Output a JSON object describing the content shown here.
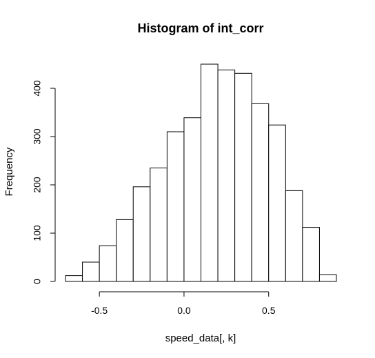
{
  "chart_data": {
    "type": "bar",
    "title": "Histogram of int_corr",
    "xlabel": "speed_data[, k]",
    "ylabel": "Frequency",
    "bins": [
      {
        "start": -0.7,
        "end": -0.6,
        "count": 12
      },
      {
        "start": -0.6,
        "end": -0.5,
        "count": 40
      },
      {
        "start": -0.5,
        "end": -0.4,
        "count": 74
      },
      {
        "start": -0.4,
        "end": -0.3,
        "count": 128
      },
      {
        "start": -0.3,
        "end": -0.2,
        "count": 196
      },
      {
        "start": -0.2,
        "end": -0.1,
        "count": 235
      },
      {
        "start": -0.1,
        "end": 0.0,
        "count": 310
      },
      {
        "start": 0.0,
        "end": 0.1,
        "count": 339
      },
      {
        "start": 0.1,
        "end": 0.2,
        "count": 450
      },
      {
        "start": 0.2,
        "end": 0.3,
        "count": 438
      },
      {
        "start": 0.3,
        "end": 0.4,
        "count": 431
      },
      {
        "start": 0.4,
        "end": 0.5,
        "count": 368
      },
      {
        "start": 0.5,
        "end": 0.6,
        "count": 324
      },
      {
        "start": 0.6,
        "end": 0.7,
        "count": 188
      },
      {
        "start": 0.7,
        "end": 0.8,
        "count": 112
      },
      {
        "start": 0.8,
        "end": 0.9,
        "count": 14
      }
    ],
    "x_ticks": [
      -0.5,
      0.0,
      0.5
    ],
    "x_tick_labels": [
      "-0.5",
      "0.0",
      "0.5"
    ],
    "y_ticks": [
      0,
      100,
      200,
      300,
      400
    ],
    "y_tick_labels": [
      "0",
      "100",
      "200",
      "300",
      "400"
    ],
    "xlim": [
      -0.7,
      0.9
    ],
    "ylim": [
      0,
      450
    ],
    "grid": false
  }
}
